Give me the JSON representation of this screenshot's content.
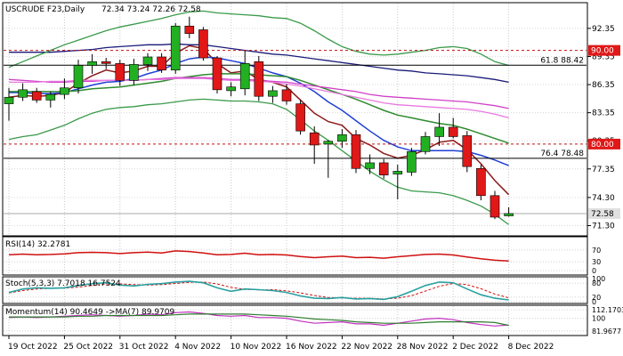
{
  "chart_data": {
    "type": "candlestick",
    "instrument": "USCRUDE F23,Daily",
    "ohlc_readout": "72.34 73.24 72.26 72.58",
    "x_tick_labels": [
      "19 Oct 2022",
      "25 Oct 2022",
      "31 Oct 2022",
      "4 Nov 2022",
      "10 Nov 2022",
      "16 Nov 2022",
      "22 Nov 2022",
      "28 Nov 2022",
      "2 Dec 2022",
      "8 Dec 2022"
    ],
    "x_tick_bar_index": [
      0,
      4,
      8,
      12,
      16,
      20,
      24,
      28,
      32,
      36
    ],
    "price_axis": {
      "ylim": [
        70.3,
        95.0
      ],
      "ticks": [
        "92.35",
        "89.35",
        "86.35",
        "83.35",
        "80.35",
        "77.35",
        "74.30",
        "71.30"
      ],
      "tick_values": [
        92.35,
        89.35,
        86.35,
        83.35,
        80.35,
        77.35,
        74.3,
        71.3
      ]
    },
    "candles": [
      {
        "o": 84.3,
        "h": 86.0,
        "l": 82.5,
        "c": 85.0
      },
      {
        "o": 85.0,
        "h": 86.5,
        "l": 84.6,
        "c": 85.8
      },
      {
        "o": 85.6,
        "h": 86.0,
        "l": 84.4,
        "c": 84.7
      },
      {
        "o": 84.7,
        "h": 85.6,
        "l": 83.9,
        "c": 85.3
      },
      {
        "o": 85.3,
        "h": 87.0,
        "l": 84.8,
        "c": 86.0
      },
      {
        "o": 86.0,
        "h": 89.0,
        "l": 85.4,
        "c": 88.4
      },
      {
        "o": 88.4,
        "h": 89.6,
        "l": 87.5,
        "c": 88.8
      },
      {
        "o": 88.8,
        "h": 89.2,
        "l": 88.0,
        "c": 88.6
      },
      {
        "o": 88.6,
        "h": 89.0,
        "l": 86.2,
        "c": 86.8
      },
      {
        "o": 86.8,
        "h": 89.1,
        "l": 86.3,
        "c": 88.5
      },
      {
        "o": 88.5,
        "h": 89.7,
        "l": 87.8,
        "c": 89.3
      },
      {
        "o": 89.3,
        "h": 89.7,
        "l": 87.6,
        "c": 87.9
      },
      {
        "o": 87.9,
        "h": 92.9,
        "l": 87.5,
        "c": 92.6
      },
      {
        "o": 92.6,
        "h": 93.6,
        "l": 91.3,
        "c": 91.8
      },
      {
        "o": 92.2,
        "h": 92.5,
        "l": 88.9,
        "c": 89.2
      },
      {
        "o": 89.2,
        "h": 89.4,
        "l": 85.4,
        "c": 85.8
      },
      {
        "o": 85.7,
        "h": 86.6,
        "l": 85.1,
        "c": 86.1
      },
      {
        "o": 85.9,
        "h": 90.0,
        "l": 85.2,
        "c": 88.6
      },
      {
        "o": 88.8,
        "h": 89.4,
        "l": 84.6,
        "c": 85.1
      },
      {
        "o": 85.1,
        "h": 86.2,
        "l": 84.4,
        "c": 85.7
      },
      {
        "o": 85.8,
        "h": 86.4,
        "l": 84.2,
        "c": 84.6
      },
      {
        "o": 84.3,
        "h": 84.7,
        "l": 81.0,
        "c": 81.4
      },
      {
        "o": 81.2,
        "h": 81.9,
        "l": 77.9,
        "c": 79.9
      },
      {
        "o": 80.0,
        "h": 80.4,
        "l": 76.4,
        "c": 80.3
      },
      {
        "o": 80.3,
        "h": 81.6,
        "l": 79.6,
        "c": 81.0
      },
      {
        "o": 81.0,
        "h": 81.5,
        "l": 76.9,
        "c": 77.4
      },
      {
        "o": 77.4,
        "h": 78.9,
        "l": 76.8,
        "c": 78.0
      },
      {
        "o": 78.0,
        "h": 78.4,
        "l": 76.3,
        "c": 76.7
      },
      {
        "o": 76.8,
        "h": 77.8,
        "l": 74.1,
        "c": 77.1
      },
      {
        "o": 77.0,
        "h": 79.6,
        "l": 76.6,
        "c": 79.2
      },
      {
        "o": 79.2,
        "h": 81.3,
        "l": 78.9,
        "c": 80.8
      },
      {
        "o": 80.8,
        "h": 83.3,
        "l": 79.8,
        "c": 81.8
      },
      {
        "o": 81.8,
        "h": 82.8,
        "l": 80.6,
        "c": 80.8
      },
      {
        "o": 80.9,
        "h": 81.4,
        "l": 77.0,
        "c": 77.6
      },
      {
        "o": 77.4,
        "h": 77.8,
        "l": 74.0,
        "c": 74.5
      },
      {
        "o": 74.5,
        "h": 75.0,
        "l": 72.0,
        "c": 72.2
      },
      {
        "o": 72.34,
        "h": 73.24,
        "l": 72.26,
        "c": 72.58
      }
    ],
    "series": [
      {
        "color": "#8b1a1a",
        "values": [
          85.0,
          85.2,
          85.1,
          85.2,
          85.5,
          86.5,
          87.3,
          87.9,
          87.6,
          87.8,
          88.3,
          88.3,
          89.7,
          90.5,
          90.2,
          88.6,
          87.6,
          87.8,
          86.9,
          86.6,
          86.1,
          84.7,
          83.3,
          82.4,
          82.0,
          80.6,
          79.9,
          79.0,
          78.5,
          78.8,
          79.4,
          80.2,
          80.4,
          79.4,
          77.9,
          76.1,
          74.6
        ]
      },
      {
        "color": "#1f3fd6",
        "values": [
          85.5,
          85.5,
          85.4,
          85.4,
          85.5,
          85.9,
          86.3,
          86.6,
          86.7,
          87.0,
          87.5,
          87.9,
          88.6,
          89.1,
          89.3,
          89.2,
          88.9,
          88.6,
          88.1,
          87.6,
          87.2,
          86.5,
          85.6,
          84.5,
          83.6,
          82.5,
          81.4,
          80.4,
          79.7,
          79.3,
          79.3,
          79.3,
          79.3,
          79.2,
          78.8,
          78.3,
          77.7
        ]
      },
      {
        "color": "#2e8b2e",
        "values": [
          85.6,
          85.6,
          85.6,
          85.6,
          85.6,
          85.7,
          85.9,
          86.0,
          86.1,
          86.3,
          86.5,
          86.7,
          87.0,
          87.2,
          87.4,
          87.5,
          87.5,
          87.5,
          87.4,
          87.3,
          87.2,
          86.8,
          86.3,
          85.8,
          85.3,
          84.8,
          84.2,
          83.6,
          83.1,
          82.8,
          82.5,
          82.2,
          82.0,
          81.6,
          81.1,
          80.6,
          80.1
        ]
      },
      {
        "color": "#1a1a7a",
        "values": [
          89.8,
          89.8,
          89.8,
          89.8,
          89.9,
          90.0,
          90.1,
          90.3,
          90.4,
          90.5,
          90.6,
          90.6,
          90.7,
          90.6,
          90.6,
          90.4,
          90.2,
          90.0,
          89.8,
          89.6,
          89.5,
          89.3,
          89.1,
          88.9,
          88.7,
          88.5,
          88.3,
          88.1,
          87.9,
          87.8,
          87.6,
          87.5,
          87.4,
          87.3,
          87.1,
          86.9,
          86.6
        ]
      },
      {
        "color": "#d040c8",
        "values": [
          86.9,
          86.8,
          86.7,
          86.6,
          86.6,
          86.7,
          86.7,
          86.8,
          86.8,
          86.8,
          86.9,
          87.0,
          87.1,
          87.1,
          87.1,
          87.0,
          86.9,
          86.9,
          86.8,
          86.7,
          86.6,
          86.4,
          86.2,
          86.0,
          85.8,
          85.6,
          85.3,
          85.1,
          85.0,
          84.9,
          84.8,
          84.7,
          84.6,
          84.5,
          84.3,
          84.1,
          83.8
        ]
      },
      {
        "color": "#e878e0",
        "values": [
          86.6,
          86.6,
          86.6,
          86.7,
          86.7,
          86.8,
          86.8,
          86.8,
          86.8,
          86.8,
          86.9,
          86.9,
          87.0,
          87.0,
          87.0,
          86.9,
          86.8,
          86.8,
          86.7,
          86.6,
          86.4,
          86.2,
          85.9,
          85.6,
          85.3,
          85.0,
          84.7,
          84.4,
          84.2,
          84.1,
          84.0,
          83.9,
          83.8,
          83.7,
          83.5,
          83.2,
          82.8
        ]
      },
      {
        "color": "#3a9a4a",
        "values": [
          80.5,
          80.8,
          81.0,
          81.5,
          82.0,
          82.7,
          83.3,
          83.7,
          83.9,
          84.0,
          84.2,
          84.3,
          84.5,
          84.7,
          84.8,
          84.7,
          84.6,
          84.6,
          84.5,
          84.3,
          83.7,
          82.6,
          81.4,
          80.4,
          79.3,
          78.2,
          77.1,
          76.2,
          75.4,
          75.0,
          74.9,
          74.8,
          74.5,
          74.0,
          73.4,
          72.5,
          71.4
        ]
      },
      {
        "color": "#3a9a4a",
        "values": [
          88.2,
          88.8,
          89.4,
          90.0,
          90.6,
          91.1,
          91.6,
          92.1,
          92.5,
          92.8,
          93.1,
          93.4,
          93.8,
          94.1,
          94.2,
          94.0,
          93.9,
          93.8,
          93.7,
          93.5,
          93.4,
          92.9,
          92.1,
          91.2,
          90.4,
          89.9,
          89.6,
          89.5,
          89.6,
          89.8,
          90.0,
          90.3,
          90.4,
          90.2,
          89.6,
          88.8,
          88.4
        ]
      }
    ],
    "horizontal_lines": [
      {
        "value": 90.0,
        "label": "",
        "badge": "90.00",
        "color": "#c01010",
        "dash": true
      },
      {
        "value": 88.42,
        "label": "61.8 88.42",
        "badge": "",
        "color": "#000000",
        "dash": false
      },
      {
        "value": 80.0,
        "label": "",
        "badge": "80.00",
        "color": "#c01010",
        "dash": true
      },
      {
        "value": 78.48,
        "label": "76.4 78.48",
        "badge": "",
        "color": "#000000",
        "dash": false
      },
      {
        "value": 72.58,
        "label": "",
        "badge": "72.58",
        "color": "#aaaaaa",
        "dash": false
      }
    ],
    "rsi": {
      "label": "RSI(14) 32.2781",
      "ylim": [
        0,
        100
      ],
      "ticks": [
        "70",
        "30",
        "0"
      ],
      "tick_values": [
        70,
        30,
        0
      ],
      "values": [
        54,
        56,
        54,
        55,
        57,
        61,
        62,
        61,
        58,
        61,
        63,
        60,
        67,
        65,
        60,
        54,
        55,
        59,
        54,
        55,
        53,
        48,
        44,
        47,
        49,
        44,
        45,
        42,
        47,
        51,
        55,
        56,
        53,
        46,
        40,
        35,
        32.3
      ]
    },
    "stoch": {
      "label": "Stoch(5,3,3) 7.7018 16.7524",
      "ylim": [
        0,
        100
      ],
      "ticks": [
        "100",
        "80",
        "20",
        "0"
      ],
      "tick_values": [
        100,
        80,
        20,
        0
      ],
      "k": [
        40,
        55,
        60,
        58,
        60,
        70,
        78,
        82,
        72,
        68,
        75,
        78,
        85,
        88,
        82,
        60,
        45,
        55,
        52,
        48,
        40,
        25,
        15,
        14,
        18,
        12,
        14,
        10,
        22,
        45,
        70,
        85,
        82,
        55,
        30,
        15,
        7.7
      ],
      "d": [
        38,
        48,
        55,
        58,
        59,
        63,
        70,
        77,
        77,
        74,
        72,
        74,
        79,
        84,
        85,
        77,
        62,
        53,
        51,
        52,
        47,
        38,
        27,
        18,
        16,
        15,
        15,
        12,
        15,
        26,
        46,
        67,
        79,
        74,
        56,
        33,
        16.75
      ]
    },
    "momentum": {
      "label": "Momentum(14) 90.4649 ->MA(7) 89.9709",
      "ylim": [
        78,
        116
      ],
      "ticks": [
        "112.1703",
        "100",
        "81.9677"
      ],
      "tick_values": [
        112.1703,
        100,
        81.9677
      ],
      "values": [
        101,
        102,
        101,
        102,
        103,
        104,
        105,
        104,
        103,
        104,
        106,
        105,
        108,
        109,
        107,
        104,
        103,
        104,
        101,
        101,
        100,
        96,
        93,
        94,
        95,
        92,
        92,
        90,
        93,
        96,
        99,
        100,
        98,
        94,
        91,
        89,
        90.46
      ],
      "ma": [
        102,
        102,
        102,
        102,
        102,
        103,
        103,
        104,
        104,
        104,
        104,
        104,
        105,
        106,
        106,
        106,
        106,
        106,
        105,
        104,
        103,
        101,
        99,
        98,
        97,
        95,
        94,
        93,
        93,
        93,
        94,
        95,
        95,
        95,
        95,
        94,
        89.97
      ]
    }
  }
}
